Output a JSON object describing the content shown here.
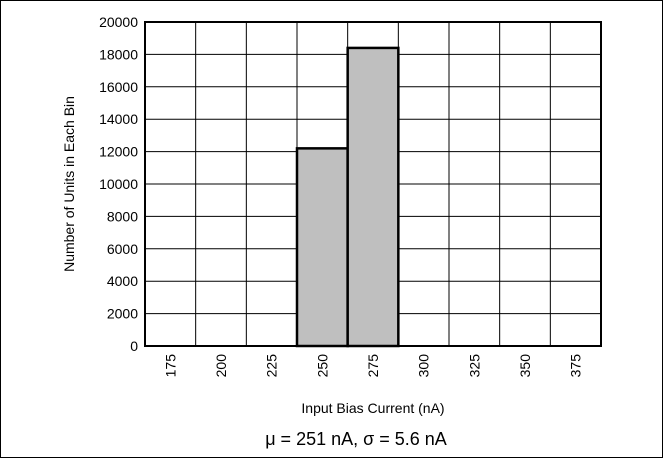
{
  "chart_data": {
    "type": "bar",
    "title": "",
    "xlabel": "Input Bias Current (nA)",
    "ylabel": "Number of Units in Each Bin",
    "categories": [
      "175",
      "200",
      "225",
      "250",
      "275",
      "300",
      "325",
      "350",
      "375"
    ],
    "values": [
      0,
      0,
      0,
      12200,
      18400,
      0,
      0,
      0,
      0
    ],
    "ylim": [
      0,
      20000
    ],
    "yticks": [
      "0",
      "2000",
      "4000",
      "6000",
      "8000",
      "10000",
      "12000",
      "14000",
      "16000",
      "18000",
      "20000"
    ],
    "grid": true,
    "annotation": "μ = 251 nA, σ = 5.6 nA",
    "colors": {
      "bar_fill": "#bfbfbf",
      "bar_stroke": "#000000",
      "grid": "#000000"
    }
  }
}
